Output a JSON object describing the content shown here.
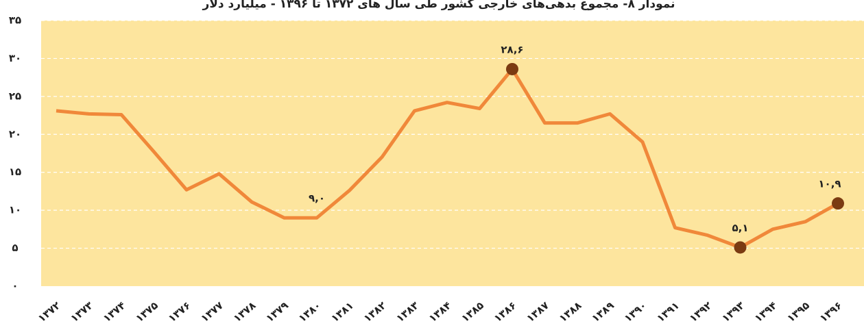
{
  "chart_data": {
    "type": "line",
    "title": "نمودار ۸- مجموع بدهی‌های خارجی کشور طی سال های ۱۳۷۲ تا ۱۳۹۶ - میلیارد دلار",
    "categories": [
      "۱۳۷۲",
      "۱۳۷۳",
      "۱۳۷۴",
      "۱۳۷۵",
      "۱۳۷۶",
      "۱۳۷۷",
      "۱۳۷۸",
      "۱۳۷۹",
      "۱۳۸۰",
      "۱۳۸۱",
      "۱۳۸۲",
      "۱۳۸۳",
      "۱۳۸۴",
      "۱۳۸۵",
      "۱۳۸۶",
      "۱۳۸۷",
      "۱۳۸۸",
      "۱۳۸۹",
      "۱۳۹۰",
      "۱۳۹۱",
      "۱۳۹۲",
      "۱۳۹۳",
      "۱۳۹۴",
      "۱۳۹۵",
      "۱۳۹۶"
    ],
    "values": [
      23.1,
      22.7,
      22.6,
      17.7,
      12.7,
      14.8,
      11.1,
      9.0,
      9.0,
      12.6,
      17.0,
      23.1,
      24.2,
      23.4,
      28.6,
      21.5,
      21.5,
      22.7,
      19.0,
      7.7,
      6.7,
      5.1,
      7.5,
      8.5,
      10.9
    ],
    "value_labels": [
      null,
      null,
      null,
      null,
      null,
      null,
      null,
      null,
      "۹,۰",
      null,
      null,
      null,
      null,
      null,
      "۲۸,۶",
      null,
      null,
      null,
      null,
      null,
      null,
      "۵,۱",
      null,
      null,
      "۱۰,۹"
    ],
    "marked": [
      false,
      false,
      false,
      false,
      false,
      false,
      false,
      false,
      false,
      false,
      false,
      false,
      false,
      false,
      true,
      false,
      false,
      false,
      false,
      false,
      false,
      true,
      false,
      false,
      true
    ],
    "color": "#f0883a",
    "marker_color": "#7b3b12",
    "plot_background": "#fde59e",
    "ylim": [
      0,
      35
    ],
    "yticks": [
      {
        "value": 0,
        "label": "۰"
      },
      {
        "value": 5,
        "label": "۵"
      },
      {
        "value": 10,
        "label": "۱۰"
      },
      {
        "value": 15,
        "label": "۱۵"
      },
      {
        "value": 20,
        "label": "۲۰"
      },
      {
        "value": 25,
        "label": "۲۵"
      },
      {
        "value": 30,
        "label": "۳۰"
      },
      {
        "value": 35,
        "label": "۳۵"
      }
    ],
    "grid": true
  }
}
